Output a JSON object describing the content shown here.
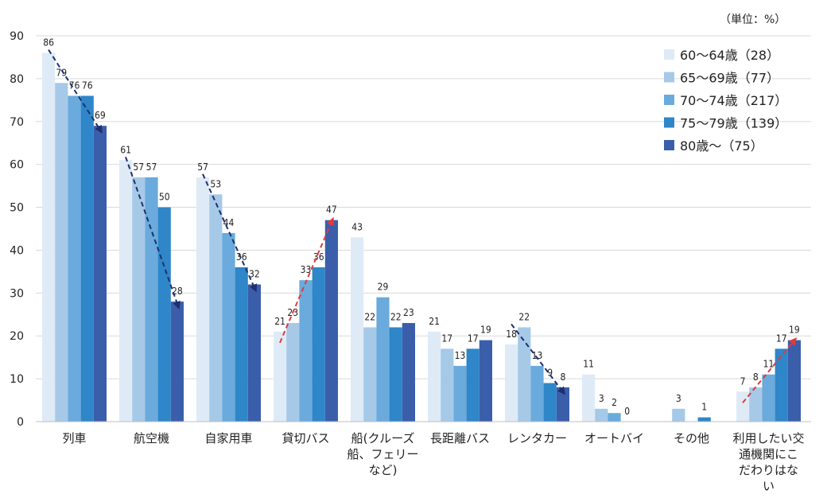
{
  "unit_label": "（単位：%）",
  "chart_data": {
    "type": "bar",
    "ylim": [
      0,
      90
    ],
    "yticks": [
      0,
      10,
      20,
      30,
      40,
      50,
      60,
      70,
      80,
      90
    ],
    "grid": true,
    "legend_position": "top-right",
    "categories": [
      [
        "列車"
      ],
      [
        "航空機"
      ],
      [
        "自家用車"
      ],
      [
        "貸切バス"
      ],
      [
        "船(クルーズ",
        "船、フェリー",
        "など)"
      ],
      [
        "長距離バス"
      ],
      [
        "レンタカー"
      ],
      [
        "オートバイ"
      ],
      [
        "その他"
      ],
      [
        "利用したい交",
        "通機関にこ",
        "だわりはな",
        "い"
      ]
    ],
    "series": [
      {
        "name": "60〜64歳（28）",
        "color": "#deebf7",
        "values": [
          86,
          61,
          57,
          21,
          43,
          21,
          18,
          11,
          0,
          7
        ]
      },
      {
        "name": "65〜69歳（77）",
        "color": "#a6c9e8",
        "values": [
          79,
          57,
          53,
          23,
          22,
          17,
          22,
          3,
          3,
          8
        ]
      },
      {
        "name": "70〜74歳（217）",
        "color": "#6aaadc",
        "values": [
          76,
          57,
          44,
          33,
          29,
          13,
          13,
          2,
          0,
          11
        ]
      },
      {
        "name": "75〜79歳（139）",
        "color": "#2f86c8",
        "values": [
          76,
          50,
          36,
          36,
          22,
          17,
          9,
          0,
          1,
          17
        ]
      },
      {
        "name": "80歳〜（75）",
        "color": "#3a5eaa",
        "values": [
          69,
          28,
          32,
          47,
          23,
          19,
          8,
          null,
          null,
          19
        ]
      }
    ],
    "bar_labels": [
      [
        "86",
        "79",
        "76",
        "76",
        "69"
      ],
      [
        "61",
        "57",
        "57",
        "50",
        "28"
      ],
      [
        "57",
        "53",
        "44",
        "36",
        "32"
      ],
      [
        "21",
        "23",
        "33",
        "36",
        "47"
      ],
      [
        "43",
        "22",
        "29",
        "22",
        "23"
      ],
      [
        "21",
        "17",
        "13",
        "17",
        "19"
      ],
      [
        "18",
        "22",
        "13",
        "9",
        "8"
      ],
      [
        "11",
        "3",
        "2",
        "0",
        ""
      ],
      [
        "",
        "3",
        "",
        "1",
        ""
      ],
      [
        "7",
        "8",
        "11",
        "17",
        "19"
      ]
    ],
    "trend_arrows": [
      {
        "category": 0,
        "color": "#1f2f6e",
        "direction": "down",
        "from": 86,
        "to": 69
      },
      {
        "category": 1,
        "color": "#1f2f6e",
        "direction": "down",
        "from": 61,
        "to": 28
      },
      {
        "category": 2,
        "color": "#1f2f6e",
        "direction": "down",
        "from": 57,
        "to": 32
      },
      {
        "category": 3,
        "color": "#e03b3b",
        "direction": "up",
        "from": 21,
        "to": 47
      },
      {
        "category": 6,
        "color": "#1f2f6e",
        "direction": "down",
        "from": 22,
        "to": 8
      },
      {
        "category": 9,
        "color": "#e03b3b",
        "direction": "up",
        "from": 7,
        "to": 19
      }
    ]
  }
}
